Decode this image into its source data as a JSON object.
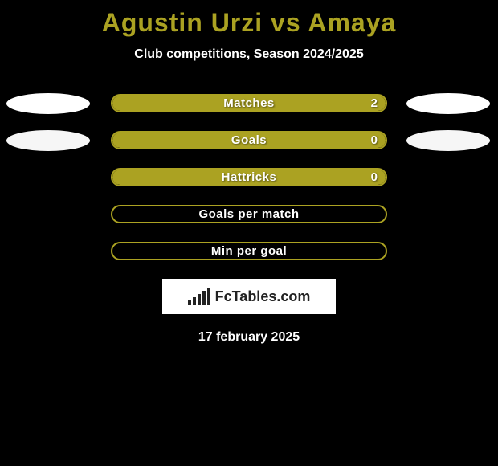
{
  "title": {
    "text": "Agustin Urzi vs Amaya",
    "color": "#aba222",
    "fontsize": 32
  },
  "subtitle": {
    "text": "Club competitions, Season 2024/2025",
    "color": "#ffffff",
    "fontsize": 16
  },
  "date": {
    "text": "17 february 2025",
    "color": "#ffffff",
    "fontsize": 16
  },
  "logo": {
    "text": "FcTables.com",
    "background": "#ffffff",
    "text_color": "#222222"
  },
  "background_color": "#000000",
  "bar_style": {
    "fill_color": "#aba222",
    "border_color": "#aba222",
    "border_radius": 12,
    "track_width": 344,
    "track_height": 23,
    "label_color": "#ffffff",
    "label_fontsize": 15
  },
  "ellipse_style": {
    "width": 104,
    "height": 26,
    "left_fill": "#ffffff",
    "right_fill": "#ffffff"
  },
  "rows": [
    {
      "label": "Matches",
      "value": "2",
      "fill_pct": 100,
      "show_value": true,
      "left_ellipse_color": "#ffffff",
      "right_ellipse_color": "#ffffff",
      "show_ellipses": true
    },
    {
      "label": "Goals",
      "value": "0",
      "fill_pct": 100,
      "show_value": true,
      "left_ellipse_color": "#f6f6f6",
      "right_ellipse_color": "#f6f6f6",
      "show_ellipses": true
    },
    {
      "label": "Hattricks",
      "value": "0",
      "fill_pct": 100,
      "show_value": true,
      "left_ellipse_color": null,
      "right_ellipse_color": null,
      "show_ellipses": false
    },
    {
      "label": "Goals per match",
      "value": "",
      "fill_pct": 0,
      "show_value": false,
      "left_ellipse_color": null,
      "right_ellipse_color": null,
      "show_ellipses": false
    },
    {
      "label": "Min per goal",
      "value": "",
      "fill_pct": 0,
      "show_value": false,
      "left_ellipse_color": null,
      "right_ellipse_color": null,
      "show_ellipses": false
    }
  ]
}
